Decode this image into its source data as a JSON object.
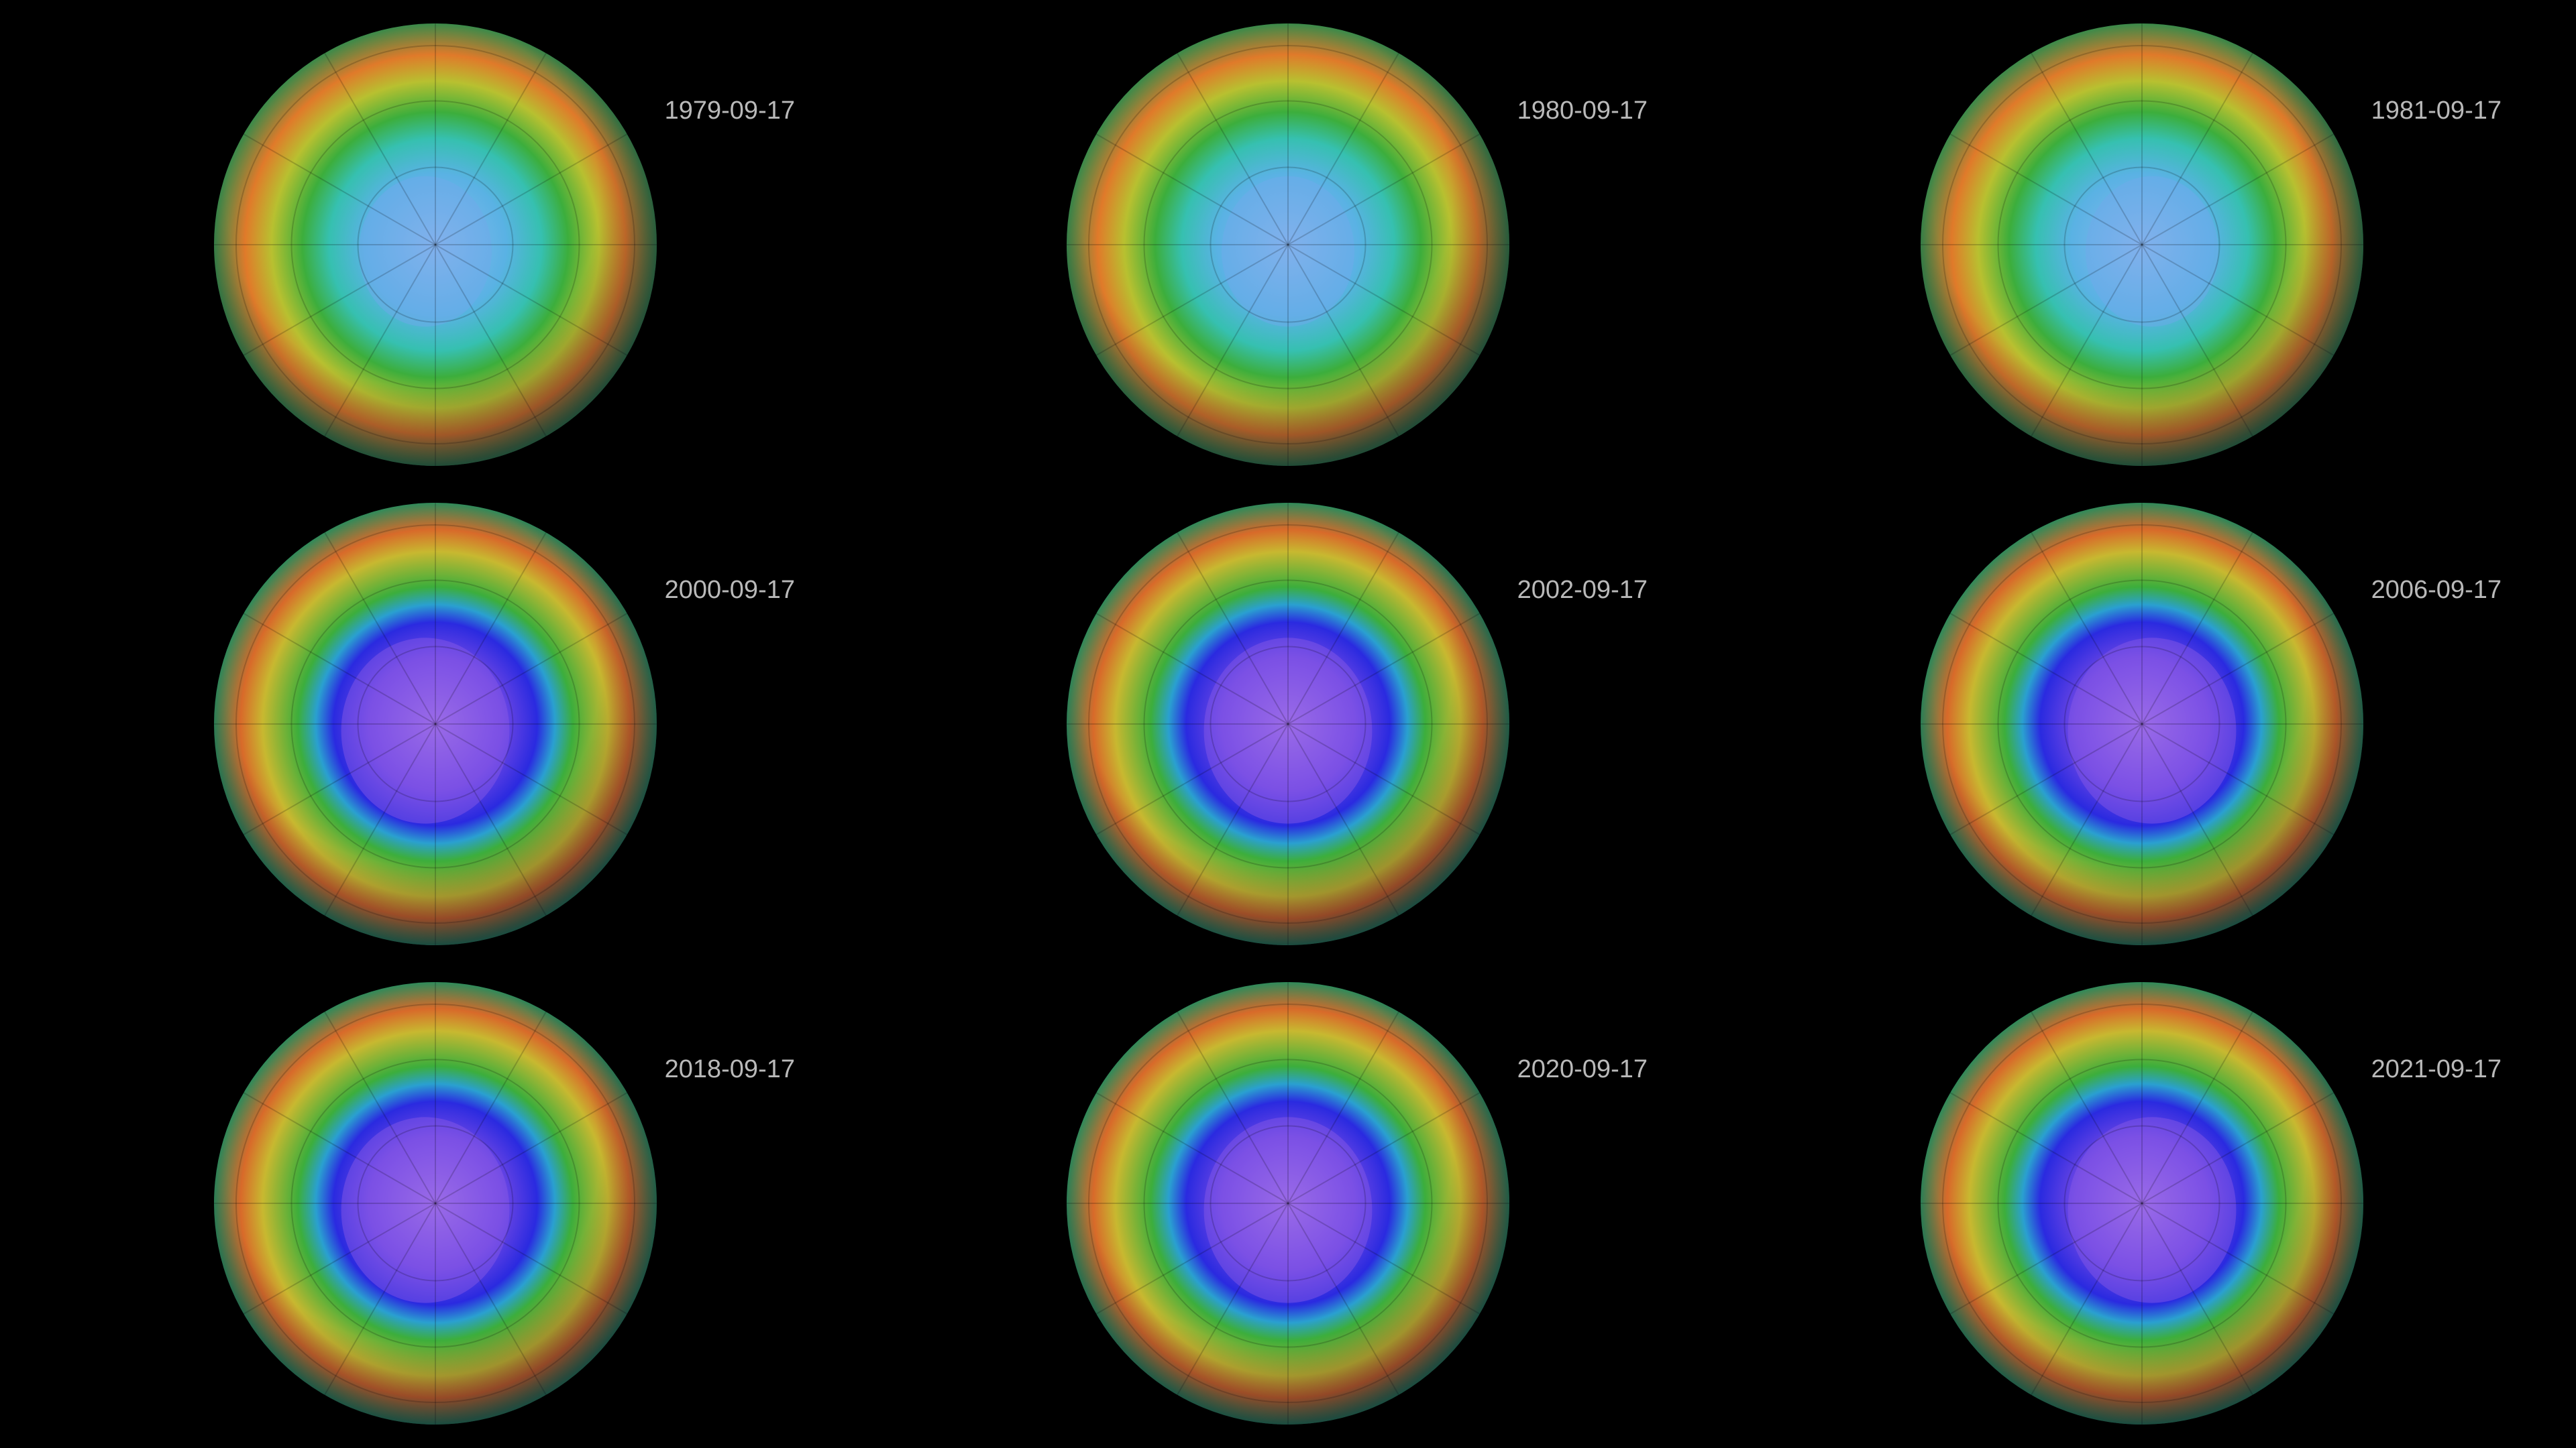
{
  "panels": [
    {
      "date": "1979-09-17"
    },
    {
      "date": "1980-09-17"
    },
    {
      "date": "1981-09-17"
    },
    {
      "date": "2000-09-17"
    },
    {
      "date": "2002-09-17"
    },
    {
      "date": "2006-09-17"
    },
    {
      "date": "2018-09-17"
    },
    {
      "date": "2020-09-17"
    },
    {
      "date": "2021-09-17"
    }
  ]
}
